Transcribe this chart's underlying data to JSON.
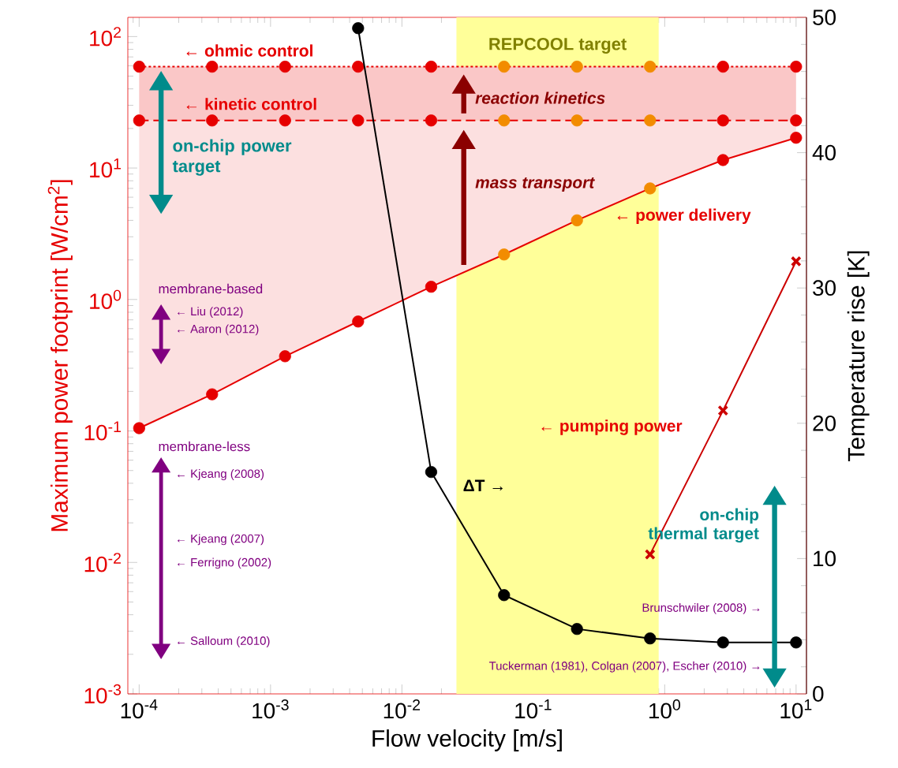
{
  "chart_data": {
    "type": "line",
    "xlabel": "Flow velocity [m/s]",
    "ylabel": "Maximum power footprint [W/cm$^{2}$]",
    "y2label": "Temperature rise [K]",
    "log": "xy",
    "xlim": [
      8.2e-05,
      12
    ],
    "ylim": [
      0.001,
      140
    ],
    "y2lim": [
      0,
      50
    ],
    "xticks": [
      {
        "value": 0.0001,
        "label": "10$^{-4}$"
      },
      {
        "value": 0.001,
        "label": "10$^{-3}$"
      },
      {
        "value": 0.01,
        "label": "10$^{-2}$"
      },
      {
        "value": 0.1,
        "label": "10$^{-1}$"
      },
      {
        "value": 1,
        "label": "10$^{0}$"
      },
      {
        "value": 10,
        "label": "10$^{1}$"
      }
    ],
    "yticks": [
      {
        "value": 0.001,
        "label": "10$^{-3}$"
      },
      {
        "value": 0.01,
        "label": "10$^{-2}$"
      },
      {
        "value": 0.1,
        "label": "10$^{-1}$"
      },
      {
        "value": 1,
        "label": "10$^{0}$"
      },
      {
        "value": 10,
        "label": "10$^{1}$"
      },
      {
        "value": 100,
        "label": "10$^{2}$"
      }
    ],
    "y2ticks": [
      0,
      10,
      20,
      30,
      40,
      50
    ],
    "x": [
      0.0001,
      0.000359,
      0.00129,
      0.00464,
      0.0167,
      0.0599,
      0.215,
      0.774,
      2.78,
      10
    ],
    "series": [
      {
        "color": "#e60000",
        "colors": [
          "#e60000",
          "#e60000",
          "#e60000",
          "#e60000",
          "#e60000",
          "#f28c00",
          "#f28c00",
          "#f28c00",
          "#e60000",
          "#e60000"
        ],
        "values": [
          59,
          59,
          59,
          59,
          59,
          59,
          59,
          59,
          59,
          59
        ],
        "line_style": "dotted",
        "marker": "circle",
        "lower": [
          23,
          23,
          23,
          23,
          23,
          23,
          23,
          23,
          23,
          23
        ],
        "upper": [
          59,
          59,
          59,
          59,
          59,
          59,
          59,
          59,
          59,
          59
        ]
      },
      {
        "color": "#e60000",
        "colors": [
          "#e60000",
          "#e60000",
          "#e60000",
          "#e60000",
          "#e60000",
          "#f28c00",
          "#f28c00",
          "#f28c00",
          "#e60000",
          "#e60000"
        ],
        "values": [
          23,
          23,
          23,
          23,
          23,
          23,
          23,
          23,
          23,
          23
        ],
        "line_style": "dashed",
        "marker": "circle",
        "lower": [
          0.105,
          0.19,
          0.37,
          0.68,
          1.25,
          2.2,
          4.0,
          7.0,
          11.5,
          17
        ],
        "upper": [
          23,
          23,
          23,
          23,
          23,
          23,
          23,
          23,
          23,
          23
        ]
      },
      {
        "color": "#e60000",
        "colors": [
          "#e60000",
          "#e60000",
          "#e60000",
          "#e60000",
          "#e60000",
          "#f28c00",
          "#f28c00",
          "#f28c00",
          "#e60000",
          "#e60000"
        ],
        "values": [
          0.105,
          0.19,
          0.37,
          0.68,
          1.25,
          2.2,
          4.0,
          7.0,
          11.5,
          17
        ],
        "line_style": "solid",
        "marker": "circle"
      },
      {
        "axis": "y2",
        "color": "#000000",
        "x": [
          0.00464,
          0.0167,
          0.0599,
          0.215,
          0.774,
          2.78,
          10
        ],
        "values": [
          49.2,
          16.4,
          7.3,
          4.8,
          4.1,
          3.8,
          3.8
        ],
        "line_style": "solid",
        "marker": "circle"
      },
      {
        "color": "#cc0000",
        "x": [
          0.774,
          2.78,
          10
        ],
        "values": [
          0.0115,
          0.143,
          1.95
        ],
        "line_style": "solid",
        "marker": "cross"
      }
    ],
    "bands": [
      {
        "axis": "x",
        "from": 0.026,
        "to": 0.9,
        "label": "REPCOOL target",
        "color": "#ffff99"
      }
    ],
    "annotations": [
      "← ohmic control",
      "← kinetic control",
      "← power delivery",
      "← pumping power",
      "ΔT →",
      "← Liu (2012)",
      "← Aaron (2012)",
      "← Kjeang (2008)",
      "← Kjeang (2007)",
      "← Ferrigno (2002)",
      "← Salloum (2010)",
      "Brunschwiler (2008) →",
      "Tuckerman (1981), Colgan (2007), Escher (2010) →",
      "on-chip power target",
      "reaction kinetics",
      "mass transport",
      "membrane-based",
      "membrane-less",
      "on-chip thermal target"
    ]
  }
}
